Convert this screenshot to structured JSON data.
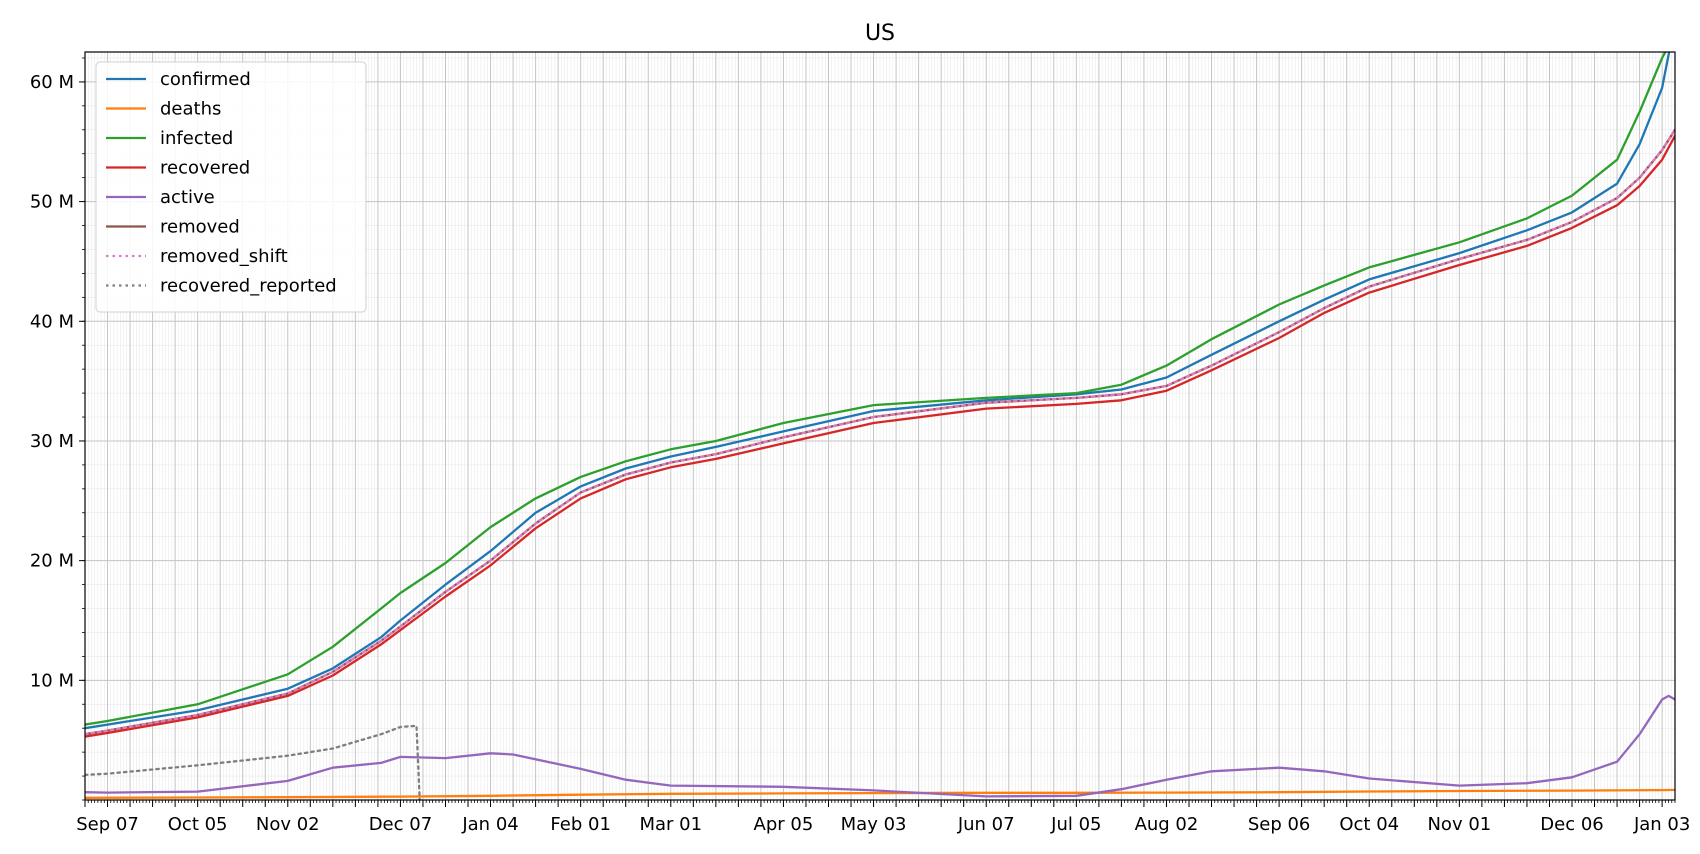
{
  "chart_data": {
    "type": "line",
    "title": "US",
    "xlabel": "",
    "ylabel": "",
    "x_axis": {
      "type": "date",
      "range": [
        "2020-08-31",
        "2022-01-07"
      ],
      "tick_labels": [
        {
          "date": "2020-09-07",
          "label": "Sep 07"
        },
        {
          "date": "2020-10-05",
          "label": "Oct 05"
        },
        {
          "date": "2020-11-02",
          "label": "Nov 02"
        },
        {
          "date": "2020-12-07",
          "label": "Dec 07"
        },
        {
          "date": "2021-01-04",
          "label": "Jan 04"
        },
        {
          "date": "2021-02-01",
          "label": "Feb 01"
        },
        {
          "date": "2021-03-01",
          "label": "Mar 01"
        },
        {
          "date": "2021-04-05",
          "label": "Apr 05"
        },
        {
          "date": "2021-05-03",
          "label": "May 03"
        },
        {
          "date": "2021-06-07",
          "label": "Jun 07"
        },
        {
          "date": "2021-07-05",
          "label": "Jul 05"
        },
        {
          "date": "2021-08-02",
          "label": "Aug 02"
        },
        {
          "date": "2021-09-06",
          "label": "Sep 06"
        },
        {
          "date": "2021-10-04",
          "label": "Oct 04"
        },
        {
          "date": "2021-11-01",
          "label": "Nov 01"
        },
        {
          "date": "2021-12-06",
          "label": "Dec 06"
        },
        {
          "date": "2022-01-03",
          "label": "Jan 03"
        }
      ]
    },
    "y_axis": {
      "range": [
        0,
        62500000
      ],
      "tick_labels": [
        {
          "value": 10000000,
          "label": "10 M"
        },
        {
          "value": 20000000,
          "label": "20 M"
        },
        {
          "value": 30000000,
          "label": "30 M"
        },
        {
          "value": 40000000,
          "label": "40 M"
        },
        {
          "value": 50000000,
          "label": "50 M"
        },
        {
          "value": 60000000,
          "label": "60 M"
        }
      ]
    },
    "grid": {
      "major": true,
      "minor": true
    },
    "legend": {
      "placement": "upper-left"
    },
    "series": [
      {
        "name": "confirmed",
        "color": "#1f77b4",
        "dash": "solid",
        "points": [
          [
            "2020-08-31",
            6000000
          ],
          [
            "2020-09-07",
            6300000
          ],
          [
            "2020-10-05",
            7500000
          ],
          [
            "2020-11-02",
            9300000
          ],
          [
            "2020-11-16",
            11000000
          ],
          [
            "2020-12-01",
            13600000
          ],
          [
            "2020-12-07",
            15000000
          ],
          [
            "2020-12-21",
            18000000
          ],
          [
            "2021-01-04",
            20800000
          ],
          [
            "2021-01-18",
            24000000
          ],
          [
            "2021-02-01",
            26200000
          ],
          [
            "2021-02-15",
            27700000
          ],
          [
            "2021-03-01",
            28700000
          ],
          [
            "2021-03-15",
            29500000
          ],
          [
            "2021-04-05",
            30800000
          ],
          [
            "2021-05-03",
            32500000
          ],
          [
            "2021-06-07",
            33400000
          ],
          [
            "2021-07-05",
            33900000
          ],
          [
            "2021-07-19",
            34300000
          ],
          [
            "2021-08-02",
            35300000
          ],
          [
            "2021-08-16",
            37200000
          ],
          [
            "2021-09-06",
            40000000
          ],
          [
            "2021-09-20",
            41800000
          ],
          [
            "2021-10-04",
            43500000
          ],
          [
            "2021-11-01",
            45700000
          ],
          [
            "2021-11-22",
            47600000
          ],
          [
            "2021-12-06",
            49100000
          ],
          [
            "2021-12-20",
            51500000
          ],
          [
            "2021-12-27",
            54800000
          ],
          [
            "2022-01-03",
            59500000
          ],
          [
            "2022-01-07",
            65000000
          ]
        ]
      },
      {
        "name": "deaths",
        "color": "#ff7f0e",
        "dash": "solid",
        "points": [
          [
            "2020-08-31",
            185000
          ],
          [
            "2020-10-05",
            210000
          ],
          [
            "2020-11-02",
            235000
          ],
          [
            "2020-12-07",
            285000
          ],
          [
            "2021-01-04",
            355000
          ],
          [
            "2021-02-01",
            445000
          ],
          [
            "2021-03-01",
            515000
          ],
          [
            "2021-04-05",
            555000
          ],
          [
            "2021-05-03",
            575000
          ],
          [
            "2021-06-07",
            598000
          ],
          [
            "2021-07-05",
            605000
          ],
          [
            "2021-08-02",
            615000
          ],
          [
            "2021-09-06",
            650000
          ],
          [
            "2021-10-04",
            710000
          ],
          [
            "2021-11-01",
            750000
          ],
          [
            "2021-12-06",
            785000
          ],
          [
            "2022-01-03",
            830000
          ],
          [
            "2022-01-07",
            840000
          ]
        ]
      },
      {
        "name": "infected",
        "color": "#2ca02c",
        "dash": "solid",
        "points": [
          [
            "2020-08-31",
            6300000
          ],
          [
            "2020-09-07",
            6600000
          ],
          [
            "2020-10-05",
            8000000
          ],
          [
            "2020-11-02",
            10500000
          ],
          [
            "2020-11-16",
            12800000
          ],
          [
            "2020-12-01",
            16000000
          ],
          [
            "2020-12-07",
            17300000
          ],
          [
            "2020-12-21",
            19800000
          ],
          [
            "2021-01-04",
            22800000
          ],
          [
            "2021-01-18",
            25200000
          ],
          [
            "2021-02-01",
            27000000
          ],
          [
            "2021-02-15",
            28300000
          ],
          [
            "2021-03-01",
            29300000
          ],
          [
            "2021-03-15",
            30000000
          ],
          [
            "2021-04-05",
            31500000
          ],
          [
            "2021-05-03",
            33000000
          ],
          [
            "2021-06-07",
            33600000
          ],
          [
            "2021-07-05",
            34000000
          ],
          [
            "2021-07-19",
            34700000
          ],
          [
            "2021-08-02",
            36300000
          ],
          [
            "2021-08-16",
            38500000
          ],
          [
            "2021-09-06",
            41400000
          ],
          [
            "2021-09-20",
            43000000
          ],
          [
            "2021-10-04",
            44500000
          ],
          [
            "2021-11-01",
            46600000
          ],
          [
            "2021-11-22",
            48600000
          ],
          [
            "2021-12-06",
            50500000
          ],
          [
            "2021-12-20",
            53500000
          ],
          [
            "2021-12-27",
            57500000
          ],
          [
            "2022-01-03",
            62000000
          ],
          [
            "2022-01-06",
            63500000
          ]
        ]
      },
      {
        "name": "recovered",
        "color": "#d62728",
        "dash": "solid",
        "points": [
          [
            "2020-08-31",
            5300000
          ],
          [
            "2020-09-07",
            5600000
          ],
          [
            "2020-10-05",
            6900000
          ],
          [
            "2020-11-02",
            8700000
          ],
          [
            "2020-11-16",
            10400000
          ],
          [
            "2020-12-01",
            13000000
          ],
          [
            "2020-12-07",
            14200000
          ],
          [
            "2020-12-21",
            17000000
          ],
          [
            "2021-01-04",
            19600000
          ],
          [
            "2021-01-18",
            22700000
          ],
          [
            "2021-02-01",
            25200000
          ],
          [
            "2021-02-15",
            26800000
          ],
          [
            "2021-03-01",
            27800000
          ],
          [
            "2021-03-15",
            28500000
          ],
          [
            "2021-04-05",
            29800000
          ],
          [
            "2021-05-03",
            31500000
          ],
          [
            "2021-06-07",
            32700000
          ],
          [
            "2021-07-05",
            33100000
          ],
          [
            "2021-07-19",
            33400000
          ],
          [
            "2021-08-02",
            34200000
          ],
          [
            "2021-08-16",
            35900000
          ],
          [
            "2021-09-06",
            38600000
          ],
          [
            "2021-09-20",
            40700000
          ],
          [
            "2021-10-04",
            42400000
          ],
          [
            "2021-11-01",
            44700000
          ],
          [
            "2021-11-22",
            46300000
          ],
          [
            "2021-12-06",
            47800000
          ],
          [
            "2021-12-20",
            49700000
          ],
          [
            "2021-12-27",
            51300000
          ],
          [
            "2022-01-03",
            53500000
          ],
          [
            "2022-01-07",
            55500000
          ]
        ]
      },
      {
        "name": "active",
        "color": "#9467bd",
        "dash": "solid",
        "points": [
          [
            "2020-08-31",
            650000
          ],
          [
            "2020-09-07",
            620000
          ],
          [
            "2020-10-05",
            700000
          ],
          [
            "2020-11-02",
            1600000
          ],
          [
            "2020-11-16",
            2700000
          ],
          [
            "2020-12-01",
            3100000
          ],
          [
            "2020-12-07",
            3600000
          ],
          [
            "2020-12-21",
            3500000
          ],
          [
            "2021-01-04",
            3900000
          ],
          [
            "2021-01-11",
            3800000
          ],
          [
            "2021-02-01",
            2600000
          ],
          [
            "2021-02-15",
            1700000
          ],
          [
            "2021-03-01",
            1200000
          ],
          [
            "2021-04-05",
            1100000
          ],
          [
            "2021-05-03",
            800000
          ],
          [
            "2021-06-07",
            300000
          ],
          [
            "2021-07-05",
            350000
          ],
          [
            "2021-07-19",
            900000
          ],
          [
            "2021-08-02",
            1700000
          ],
          [
            "2021-08-16",
            2400000
          ],
          [
            "2021-09-06",
            2700000
          ],
          [
            "2021-09-20",
            2400000
          ],
          [
            "2021-10-04",
            1800000
          ],
          [
            "2021-11-01",
            1200000
          ],
          [
            "2021-11-22",
            1400000
          ],
          [
            "2021-12-06",
            1900000
          ],
          [
            "2021-12-20",
            3200000
          ],
          [
            "2021-12-27",
            5500000
          ],
          [
            "2022-01-03",
            8400000
          ],
          [
            "2022-01-05",
            8700000
          ],
          [
            "2022-01-07",
            8400000
          ]
        ]
      },
      {
        "name": "removed",
        "color": "#8c564b",
        "dash": "solid",
        "points": [
          [
            "2020-08-31",
            5500000
          ],
          [
            "2020-09-07",
            5800000
          ],
          [
            "2020-10-05",
            7100000
          ],
          [
            "2020-11-02",
            8900000
          ],
          [
            "2020-11-16",
            10700000
          ],
          [
            "2020-12-01",
            13300000
          ],
          [
            "2020-12-07",
            14500000
          ],
          [
            "2020-12-21",
            17400000
          ],
          [
            "2021-01-04",
            20000000
          ],
          [
            "2021-01-18",
            23100000
          ],
          [
            "2021-02-01",
            25700000
          ],
          [
            "2021-02-15",
            27200000
          ],
          [
            "2021-03-01",
            28200000
          ],
          [
            "2021-03-15",
            28900000
          ],
          [
            "2021-04-05",
            30300000
          ],
          [
            "2021-05-03",
            32000000
          ],
          [
            "2021-06-07",
            33200000
          ],
          [
            "2021-07-05",
            33600000
          ],
          [
            "2021-07-19",
            33900000
          ],
          [
            "2021-08-02",
            34600000
          ],
          [
            "2021-08-16",
            36300000
          ],
          [
            "2021-09-06",
            39100000
          ],
          [
            "2021-09-20",
            41100000
          ],
          [
            "2021-10-04",
            42900000
          ],
          [
            "2021-11-01",
            45200000
          ],
          [
            "2021-11-22",
            46800000
          ],
          [
            "2021-12-06",
            48300000
          ],
          [
            "2021-12-20",
            50300000
          ],
          [
            "2021-12-27",
            52000000
          ],
          [
            "2022-01-03",
            54300000
          ],
          [
            "2022-01-07",
            56000000
          ]
        ]
      },
      {
        "name": "removed_shift",
        "color": "#e377c2",
        "dash": "dotted",
        "points": [
          [
            "2020-08-31",
            5500000
          ],
          [
            "2020-09-07",
            5800000
          ],
          [
            "2020-10-05",
            7100000
          ],
          [
            "2020-11-02",
            8900000
          ],
          [
            "2020-11-16",
            10700000
          ],
          [
            "2020-12-01",
            13300000
          ],
          [
            "2020-12-07",
            14500000
          ],
          [
            "2020-12-21",
            17400000
          ],
          [
            "2021-01-04",
            20000000
          ],
          [
            "2021-01-18",
            23100000
          ],
          [
            "2021-02-01",
            25700000
          ],
          [
            "2021-02-15",
            27200000
          ],
          [
            "2021-03-01",
            28200000
          ],
          [
            "2021-03-15",
            28900000
          ],
          [
            "2021-04-05",
            30300000
          ],
          [
            "2021-05-03",
            32000000
          ],
          [
            "2021-06-07",
            33200000
          ],
          [
            "2021-07-05",
            33600000
          ],
          [
            "2021-07-19",
            33900000
          ],
          [
            "2021-08-02",
            34600000
          ],
          [
            "2021-08-16",
            36300000
          ],
          [
            "2021-09-06",
            39100000
          ],
          [
            "2021-09-20",
            41100000
          ],
          [
            "2021-10-04",
            42900000
          ],
          [
            "2021-11-01",
            45200000
          ],
          [
            "2021-11-22",
            46800000
          ],
          [
            "2021-12-06",
            48300000
          ],
          [
            "2021-12-20",
            50300000
          ],
          [
            "2021-12-27",
            52000000
          ],
          [
            "2022-01-03",
            54300000
          ],
          [
            "2022-01-07",
            56000000
          ]
        ]
      },
      {
        "name": "recovered_reported",
        "color": "#7f7f7f",
        "dash": "dotted",
        "points": [
          [
            "2020-08-31",
            2100000
          ],
          [
            "2020-09-07",
            2200000
          ],
          [
            "2020-10-05",
            2900000
          ],
          [
            "2020-11-02",
            3700000
          ],
          [
            "2020-11-16",
            4300000
          ],
          [
            "2020-12-01",
            5500000
          ],
          [
            "2020-12-07",
            6100000
          ],
          [
            "2020-12-12",
            6200000
          ],
          [
            "2020-12-13",
            0
          ]
        ]
      }
    ]
  }
}
